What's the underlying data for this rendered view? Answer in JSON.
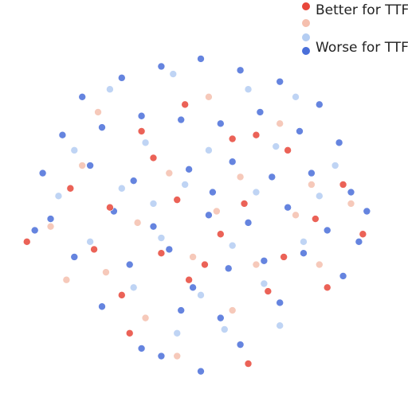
{
  "chart_data": {
    "type": "scatter",
    "legend": "top-right",
    "xlim": [
      0,
      100
    ],
    "ylim": [
      0,
      100
    ],
    "series": [
      {
        "name": "Better for TTF",
        "color": "#e8463a",
        "x": [
          35,
          46,
          64,
          38,
          58,
          72,
          86,
          17,
          27,
          44,
          61,
          79,
          6,
          23,
          40,
          55,
          71,
          91,
          30,
          47,
          67,
          82,
          32,
          62,
          51
        ],
        "y": [
          71,
          78,
          70,
          64,
          69,
          66,
          57,
          56,
          51,
          53,
          52,
          48,
          42,
          40,
          39,
          44,
          38,
          44,
          28,
          32,
          29,
          30,
          18,
          10,
          36
        ]
      },
      {
        "name": null,
        "color": "#f5bfae",
        "x": [
          24,
          52,
          70,
          20,
          42,
          60,
          78,
          12,
          34,
          54,
          74,
          88,
          26,
          48,
          64,
          80,
          36,
          58,
          44,
          16
        ],
        "y": [
          76,
          80,
          73,
          62,
          60,
          59,
          57,
          46,
          47,
          50,
          49,
          52,
          34,
          38,
          36,
          36,
          22,
          24,
          12,
          32
        ]
      },
      {
        "name": null,
        "color": "#b4cdf2",
        "x": [
          27,
          43,
          62,
          74,
          18,
          36,
          52,
          69,
          84,
          14,
          30,
          46,
          64,
          80,
          22,
          40,
          58,
          76,
          33,
          50,
          66,
          44,
          56,
          38,
          70
        ],
        "y": [
          82,
          86,
          82,
          80,
          66,
          68,
          66,
          67,
          62,
          54,
          56,
          57,
          55,
          54,
          42,
          43,
          41,
          42,
          30,
          28,
          31,
          18,
          19,
          52,
          20
        ]
      },
      {
        "name": "Worse for TTF",
        "color": "#4a6fd9",
        "x": [
          20,
          30,
          40,
          50,
          60,
          70,
          80,
          15,
          25,
          35,
          45,
          55,
          65,
          75,
          85,
          10,
          22,
          33,
          47,
          58,
          68,
          78,
          88,
          12,
          28,
          38,
          52,
          62,
          72,
          82,
          92,
          18,
          32,
          42,
          57,
          66,
          76,
          86,
          25,
          45,
          55,
          70,
          35,
          60,
          50,
          40,
          48,
          53,
          8,
          90
        ],
        "y": [
          80,
          85,
          88,
          90,
          87,
          84,
          78,
          70,
          72,
          75,
          74,
          73,
          76,
          71,
          68,
          60,
          62,
          58,
          61,
          63,
          59,
          60,
          55,
          48,
          50,
          46,
          49,
          47,
          51,
          45,
          50,
          38,
          36,
          40,
          35,
          37,
          39,
          33,
          25,
          24,
          22,
          26,
          14,
          15,
          8,
          12,
          30,
          55,
          45,
          42
        ]
      }
    ]
  }
}
